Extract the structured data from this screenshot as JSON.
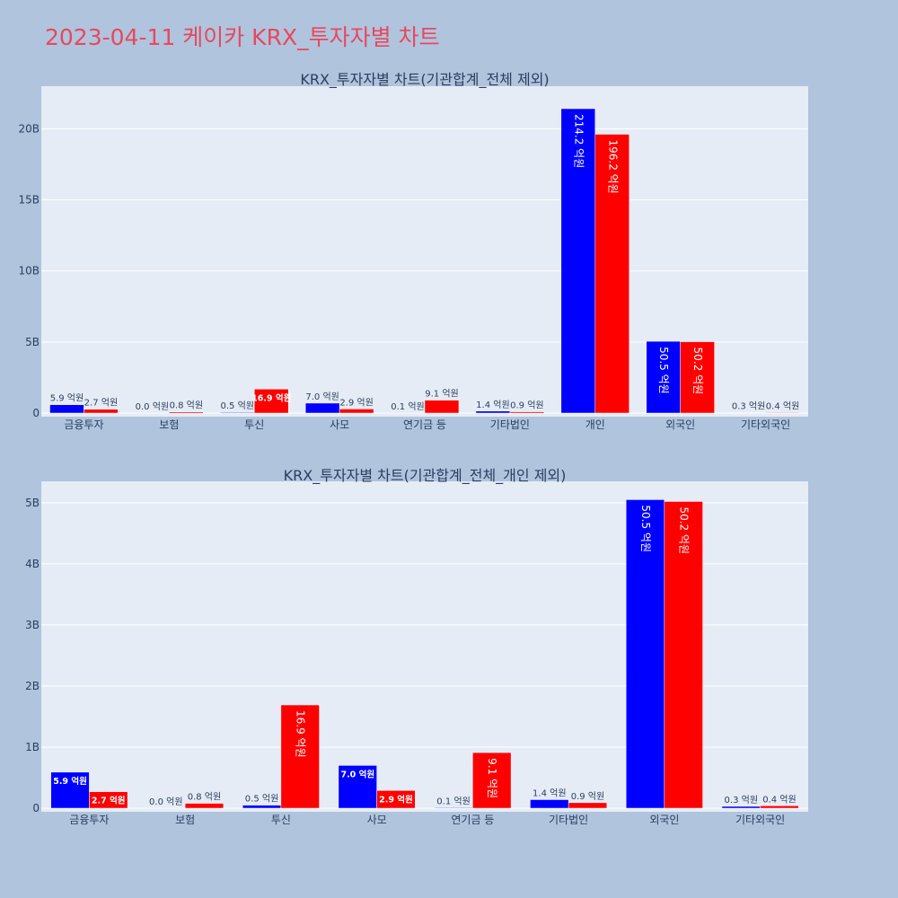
{
  "page": {
    "title": "2023-04-11 케이카 KRX_투자자별 차트",
    "title_color": "#e8485d",
    "background": "#b0c4de",
    "plot_background": "#e5ecf6"
  },
  "chart_data": [
    {
      "type": "bar",
      "title": "KRX_투자자별 차트(기관합계_전체 제외)",
      "categories": [
        "금융투자",
        "보험",
        "투신",
        "사모",
        "연기금 등",
        "기타법인",
        "개인",
        "외국인",
        "기타외국인"
      ],
      "series": [
        {
          "color": "#0000ff",
          "values": [
            0.59,
            0.003,
            0.05,
            0.7,
            0.01,
            0.14,
            21.42,
            5.05,
            0.03
          ],
          "labels": [
            "5.9 억원",
            "0.0 억원",
            "0.5 억원",
            "7.0 억원",
            "0.1 억원",
            "1.4 억원",
            "214.2 억원",
            "50.5 억원",
            "0.3 억원"
          ]
        },
        {
          "color": "#ff0000",
          "values": [
            0.27,
            0.08,
            1.69,
            0.29,
            0.91,
            0.09,
            19.62,
            5.02,
            0.04
          ],
          "labels": [
            "2.7 억원",
            "0.8 억원",
            "16.9 억원",
            "2.9 억원",
            "9.1 억원",
            "0.9 억원",
            "196.2 억원",
            "50.2 억원",
            "0.4 억원"
          ]
        }
      ],
      "ylim": [
        0,
        23.0
      ],
      "yticks": [
        0,
        5,
        10,
        15,
        20
      ],
      "yticklabels": [
        "0",
        "5B",
        "10B",
        "15B",
        "20B"
      ],
      "grid": true
    },
    {
      "type": "bar",
      "title": "KRX_투자자별 차트(기관합계_전체_개인 제외)",
      "categories": [
        "금융투자",
        "보험",
        "투신",
        "사모",
        "연기금 등",
        "기타법인",
        "외국인",
        "기타외국인"
      ],
      "series": [
        {
          "color": "#0000ff",
          "values": [
            0.59,
            0.003,
            0.05,
            0.7,
            0.01,
            0.14,
            5.05,
            0.03
          ],
          "labels": [
            "5.9 억원",
            "0.0 억원",
            "0.5 억원",
            "7.0 억원",
            "0.1 억원",
            "1.4 억원",
            "50.5 억원",
            "0.3 억원"
          ]
        },
        {
          "color": "#ff0000",
          "values": [
            0.27,
            0.08,
            1.69,
            0.29,
            0.91,
            0.09,
            5.02,
            0.04
          ],
          "labels": [
            "2.7 억원",
            "0.8 억원",
            "16.9 억원",
            "2.9 억원",
            "9.1 억원",
            "0.9 억원",
            "50.2 억원",
            "0.4 억원"
          ]
        }
      ],
      "ylim": [
        0,
        5.35
      ],
      "yticks": [
        0,
        1,
        2,
        3,
        4,
        5
      ],
      "yticklabels": [
        "0",
        "1B",
        "2B",
        "3B",
        "4B",
        "5B"
      ],
      "grid": true
    }
  ]
}
